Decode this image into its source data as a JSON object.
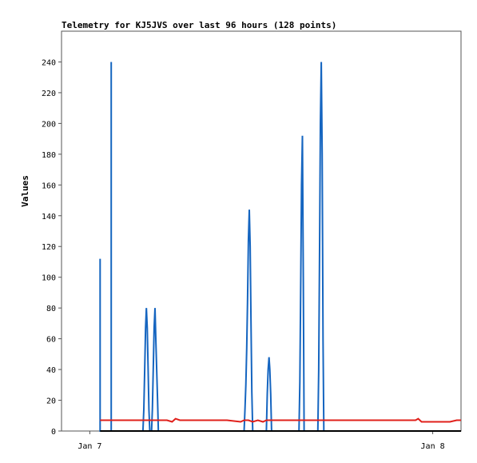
{
  "chart_data": {
    "type": "line",
    "title": "Telemetry for KJ5JVS over last 96 hours (128 points)",
    "xlabel": "",
    "ylabel": "Values",
    "ylim": [
      0,
      260
    ],
    "yticks": [
      0,
      20,
      40,
      60,
      80,
      100,
      120,
      140,
      160,
      180,
      200,
      220,
      240
    ],
    "xlim": [
      -0.33,
      4.33
    ],
    "x_unit": "days since Jan 7",
    "xticks": [
      {
        "value": 0,
        "label": "Jan 7"
      },
      {
        "value": 4,
        "label": "Jan 8"
      }
    ],
    "grid": false,
    "legend": "none",
    "series": [
      {
        "color": "#1565c0",
        "points": [
          [
            0.12,
            0
          ],
          [
            0.12,
            112
          ],
          [
            0.12,
            0
          ],
          [
            0.12,
            0
          ],
          [
            0.25,
            0
          ],
          [
            0.25,
            240
          ],
          [
            0.25,
            0
          ],
          [
            0.62,
            0
          ],
          [
            0.63,
            14
          ],
          [
            0.64,
            40
          ],
          [
            0.65,
            67
          ],
          [
            0.66,
            80
          ],
          [
            0.67,
            67
          ],
          [
            0.68,
            40
          ],
          [
            0.69,
            14
          ],
          [
            0.7,
            0
          ],
          [
            0.72,
            0
          ],
          [
            0.73,
            14
          ],
          [
            0.74,
            40
          ],
          [
            0.75,
            67
          ],
          [
            0.76,
            80
          ],
          [
            0.77,
            60
          ],
          [
            0.78,
            40
          ],
          [
            0.79,
            20
          ],
          [
            0.8,
            0
          ],
          [
            1.8,
            0
          ],
          [
            1.81,
            14
          ],
          [
            1.82,
            30
          ],
          [
            1.83,
            54
          ],
          [
            1.84,
            84
          ],
          [
            1.85,
            124
          ],
          [
            1.86,
            144
          ],
          [
            1.87,
            120
          ],
          [
            1.88,
            73
          ],
          [
            1.89,
            25
          ],
          [
            1.9,
            0
          ],
          [
            2.06,
            0
          ],
          [
            2.07,
            24
          ],
          [
            2.08,
            40
          ],
          [
            2.09,
            48
          ],
          [
            2.1,
            40
          ],
          [
            2.11,
            24
          ],
          [
            2.12,
            0
          ],
          [
            2.44,
            0
          ],
          [
            2.45,
            32
          ],
          [
            2.46,
            97
          ],
          [
            2.47,
            160
          ],
          [
            2.48,
            192
          ],
          [
            2.49,
            100
          ],
          [
            2.5,
            0
          ],
          [
            2.66,
            0
          ],
          [
            2.67,
            40
          ],
          [
            2.68,
            120
          ],
          [
            2.69,
            200
          ],
          [
            2.7,
            240
          ],
          [
            2.71,
            180
          ],
          [
            2.72,
            60
          ],
          [
            2.73,
            0
          ],
          [
            4.33,
            0
          ]
        ]
      },
      {
        "color": "#e0201b",
        "points": [
          [
            0.12,
            7
          ],
          [
            0.5,
            7
          ],
          [
            0.9,
            7
          ],
          [
            0.96,
            6
          ],
          [
            1.0,
            8
          ],
          [
            1.05,
            7
          ],
          [
            1.5,
            7
          ],
          [
            1.6,
            7
          ],
          [
            1.76,
            6
          ],
          [
            1.8,
            7
          ],
          [
            1.85,
            7
          ],
          [
            1.9,
            6
          ],
          [
            1.96,
            7
          ],
          [
            2.02,
            6
          ],
          [
            2.06,
            7
          ],
          [
            2.5,
            7
          ],
          [
            3.0,
            7
          ],
          [
            3.5,
            7
          ],
          [
            3.8,
            7
          ],
          [
            3.83,
            8
          ],
          [
            3.87,
            6
          ],
          [
            4.0,
            6
          ],
          [
            4.2,
            6
          ],
          [
            4.28,
            7
          ],
          [
            4.33,
            7
          ]
        ]
      },
      {
        "color": "#000000",
        "points": [
          [
            0.12,
            0
          ],
          [
            4.33,
            0
          ]
        ]
      }
    ]
  }
}
